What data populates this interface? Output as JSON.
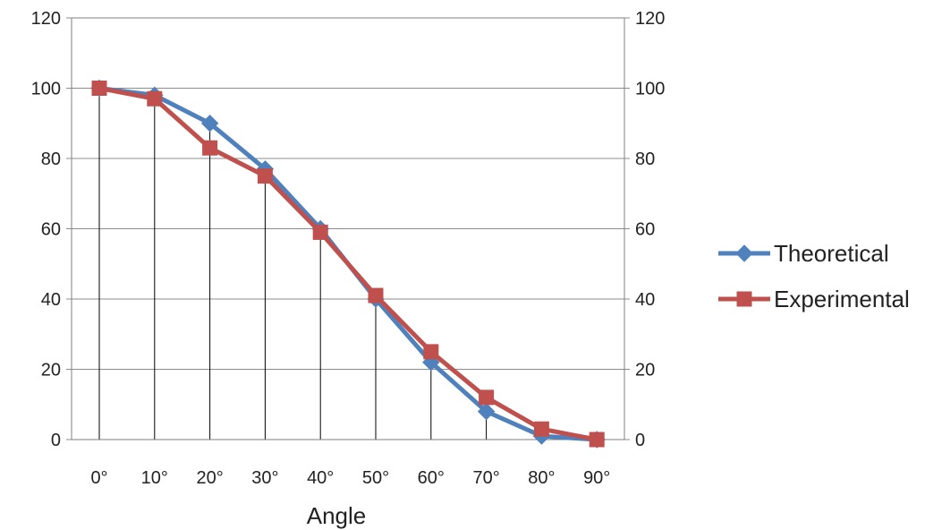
{
  "chart_data": {
    "type": "line",
    "title": "",
    "xlabel": "Angle",
    "ylabel": "",
    "categories": [
      "0°",
      "10°",
      "20°",
      "30°",
      "40°",
      "50°",
      "60°",
      "70°",
      "80°",
      "90°"
    ],
    "ylim": [
      0,
      120
    ],
    "yticks": [
      "0",
      "20",
      "40",
      "60",
      "80",
      "100",
      "120"
    ],
    "secondary_y_axis": true,
    "grid": "horizontal major gridlines, vertical drop lines at each category",
    "legend_position": "right",
    "series": [
      {
        "name": "Theoretical",
        "marker": "diamond",
        "color": "#4f81bd",
        "values": [
          100,
          98,
          90,
          77,
          60,
          40,
          22,
          8,
          1,
          0
        ]
      },
      {
        "name": "Experimental",
        "marker": "square",
        "color": "#c0504d",
        "values": [
          100,
          97,
          83,
          75,
          59,
          41,
          25,
          12,
          3,
          0
        ]
      }
    ]
  }
}
